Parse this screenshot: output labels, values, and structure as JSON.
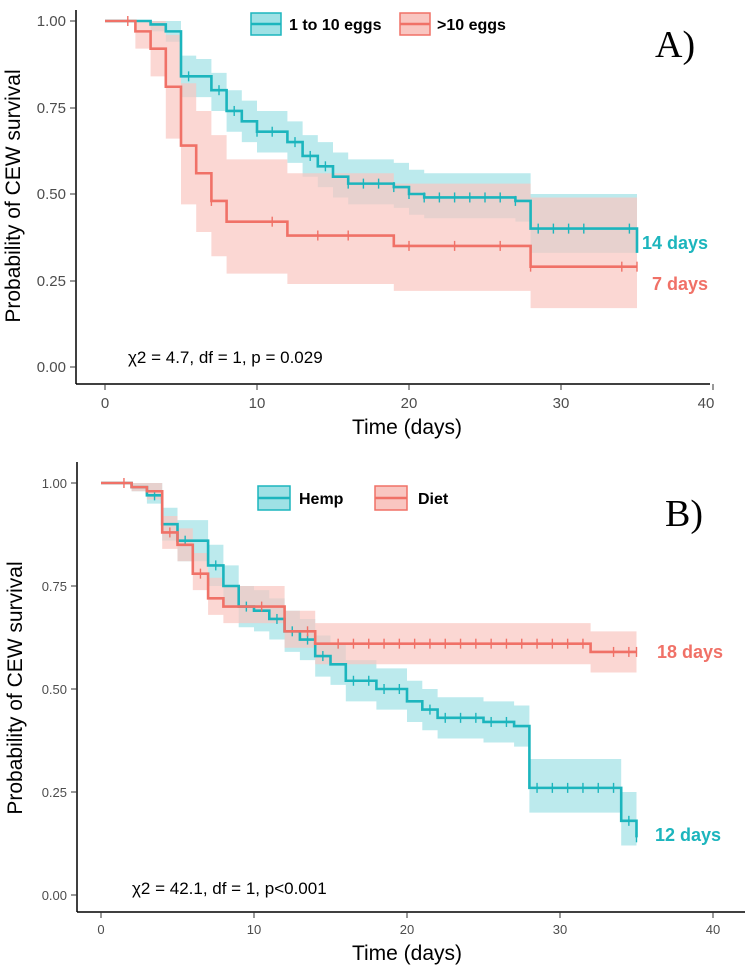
{
  "chart_data": [
    {
      "type": "line",
      "panel_label": "A)",
      "xlabel": "Time (days)",
      "ylabel": "Probability of CEW survival",
      "xlim": [
        0,
        40
      ],
      "ylim": [
        0,
        1
      ],
      "x_ticks": [
        "0",
        "10",
        "20",
        "30",
        "40"
      ],
      "y_ticks": [
        "0.00",
        "0.25",
        "0.50",
        "0.75",
        "1.00"
      ],
      "annotation": "χ2 = 4.7, df = 1, p = 0.029",
      "series": [
        {
          "name": "1 to 10 eggs",
          "color": "#1cb5bd",
          "fill": "#9fe1e5",
          "end_label": "14 days",
          "steps": [
            [
              0,
              1.0
            ],
            [
              3,
              0.99
            ],
            [
              4,
              0.97
            ],
            [
              5,
              0.84
            ],
            [
              6,
              0.84
            ],
            [
              7,
              0.8
            ],
            [
              8,
              0.74
            ],
            [
              9,
              0.71
            ],
            [
              10,
              0.68
            ],
            [
              11,
              0.68
            ],
            [
              12,
              0.65
            ],
            [
              13,
              0.61
            ],
            [
              14,
              0.58
            ],
            [
              15,
              0.55
            ],
            [
              16,
              0.53
            ],
            [
              18,
              0.53
            ],
            [
              19,
              0.52
            ],
            [
              20,
              0.5
            ],
            [
              21,
              0.49
            ],
            [
              26,
              0.49
            ],
            [
              27,
              0.48
            ],
            [
              28,
              0.4
            ],
            [
              34,
              0.4
            ],
            [
              35,
              0.33
            ]
          ],
          "ci_upper": [
            [
              0,
              1.0
            ],
            [
              3,
              1.0
            ],
            [
              4,
              1.0
            ],
            [
              5,
              0.9
            ],
            [
              6,
              0.89
            ],
            [
              7,
              0.85
            ],
            [
              8,
              0.8
            ],
            [
              9,
              0.77
            ],
            [
              10,
              0.74
            ],
            [
              11,
              0.74
            ],
            [
              12,
              0.71
            ],
            [
              13,
              0.67
            ],
            [
              14,
              0.65
            ],
            [
              15,
              0.62
            ],
            [
              16,
              0.6
            ],
            [
              18,
              0.6
            ],
            [
              19,
              0.59
            ],
            [
              20,
              0.57
            ],
            [
              21,
              0.56
            ],
            [
              26,
              0.56
            ],
            [
              27,
              0.56
            ],
            [
              28,
              0.5
            ],
            [
              34,
              0.5
            ],
            [
              35,
              0.45
            ]
          ],
          "ci_lower": [
            [
              0,
              1.0
            ],
            [
              3,
              0.97
            ],
            [
              4,
              0.94
            ],
            [
              5,
              0.78
            ],
            [
              6,
              0.78
            ],
            [
              7,
              0.74
            ],
            [
              8,
              0.68
            ],
            [
              9,
              0.65
            ],
            [
              10,
              0.62
            ],
            [
              11,
              0.62
            ],
            [
              12,
              0.59
            ],
            [
              13,
              0.55
            ],
            [
              14,
              0.52
            ],
            [
              15,
              0.49
            ],
            [
              16,
              0.47
            ],
            [
              18,
              0.47
            ],
            [
              19,
              0.46
            ],
            [
              20,
              0.44
            ],
            [
              21,
              0.43
            ],
            [
              26,
              0.43
            ],
            [
              27,
              0.42
            ],
            [
              28,
              0.33
            ],
            [
              34,
              0.33
            ],
            [
              35,
              0.24
            ]
          ],
          "censor_x": [
            5.5,
            7.5,
            8.5,
            10,
            11,
            12.5,
            13.5,
            14.5,
            16,
            17,
            18,
            19,
            20,
            21,
            22,
            23,
            24,
            25,
            26,
            27,
            28.5,
            29.5,
            30.5,
            31.5,
            34.5
          ]
        },
        {
          "name": ">10 eggs",
          "color": "#f07167",
          "fill": "#f9c6c1",
          "end_label": "7 days",
          "steps": [
            [
              0,
              1.0
            ],
            [
              2,
              0.97
            ],
            [
              3,
              0.92
            ],
            [
              4,
              0.81
            ],
            [
              5,
              0.64
            ],
            [
              6,
              0.56
            ],
            [
              7,
              0.48
            ],
            [
              8,
              0.42
            ],
            [
              12,
              0.38
            ],
            [
              19,
              0.35
            ],
            [
              28,
              0.29
            ],
            [
              35,
              0.29
            ]
          ],
          "ci_upper": [
            [
              0,
              1.0
            ],
            [
              2,
              1.0
            ],
            [
              3,
              1.0
            ],
            [
              4,
              0.96
            ],
            [
              5,
              0.82
            ],
            [
              6,
              0.74
            ],
            [
              7,
              0.67
            ],
            [
              8,
              0.6
            ],
            [
              12,
              0.56
            ],
            [
              19,
              0.53
            ],
            [
              28,
              0.49
            ],
            [
              35,
              0.49
            ]
          ],
          "ci_lower": [
            [
              0,
              1.0
            ],
            [
              2,
              0.92
            ],
            [
              3,
              0.84
            ],
            [
              4,
              0.66
            ],
            [
              5,
              0.47
            ],
            [
              6,
              0.39
            ],
            [
              7,
              0.32
            ],
            [
              8,
              0.27
            ],
            [
              12,
              0.24
            ],
            [
              19,
              0.22
            ],
            [
              28,
              0.17
            ],
            [
              35,
              0.17
            ]
          ],
          "censor_x": [
            1.5,
            7,
            11,
            14,
            16,
            20,
            23,
            26,
            28,
            34,
            35
          ]
        }
      ]
    },
    {
      "type": "line",
      "panel_label": "B)",
      "xlabel": "Time (days)",
      "ylabel": "Probability of CEW survival",
      "xlim": [
        0,
        40
      ],
      "ylim": [
        0,
        1
      ],
      "x_ticks": [
        "0",
        "10",
        "20",
        "30",
        "40"
      ],
      "y_ticks": [
        "0.00",
        "0.25",
        "0.50",
        "0.75",
        "1.00"
      ],
      "annotation": "χ2 = 42.1, df = 1, p<0.001",
      "series": [
        {
          "name": "Hemp",
          "color": "#1cb5bd",
          "fill": "#9fe1e5",
          "end_label": "12 days",
          "steps": [
            [
              0,
              1.0
            ],
            [
              2,
              0.99
            ],
            [
              3,
              0.97
            ],
            [
              4,
              0.9
            ],
            [
              5,
              0.86
            ],
            [
              6,
              0.86
            ],
            [
              7,
              0.8
            ],
            [
              8,
              0.75
            ],
            [
              9,
              0.7
            ],
            [
              10,
              0.69
            ],
            [
              11,
              0.67
            ],
            [
              12,
              0.64
            ],
            [
              13,
              0.62
            ],
            [
              14,
              0.58
            ],
            [
              15,
              0.56
            ],
            [
              16,
              0.52
            ],
            [
              18,
              0.5
            ],
            [
              20,
              0.47
            ],
            [
              21,
              0.45
            ],
            [
              22,
              0.43
            ],
            [
              25,
              0.42
            ],
            [
              27,
              0.41
            ],
            [
              28,
              0.26
            ],
            [
              34,
              0.18
            ],
            [
              35,
              0.14
            ]
          ],
          "ci_upper": [
            [
              0,
              1.0
            ],
            [
              2,
              1.0
            ],
            [
              3,
              1.0
            ],
            [
              4,
              0.94
            ],
            [
              5,
              0.91
            ],
            [
              6,
              0.91
            ],
            [
              7,
              0.85
            ],
            [
              8,
              0.8
            ],
            [
              9,
              0.75
            ],
            [
              10,
              0.74
            ],
            [
              11,
              0.72
            ],
            [
              12,
              0.69
            ],
            [
              13,
              0.67
            ],
            [
              14,
              0.63
            ],
            [
              15,
              0.61
            ],
            [
              16,
              0.57
            ],
            [
              18,
              0.55
            ],
            [
              20,
              0.52
            ],
            [
              21,
              0.5
            ],
            [
              22,
              0.48
            ],
            [
              25,
              0.47
            ],
            [
              27,
              0.46
            ],
            [
              28,
              0.33
            ],
            [
              34,
              0.25
            ],
            [
              35,
              0.2
            ]
          ],
          "ci_lower": [
            [
              0,
              1.0
            ],
            [
              2,
              0.98
            ],
            [
              3,
              0.95
            ],
            [
              4,
              0.86
            ],
            [
              5,
              0.81
            ],
            [
              6,
              0.81
            ],
            [
              7,
              0.75
            ],
            [
              8,
              0.7
            ],
            [
              9,
              0.65
            ],
            [
              10,
              0.64
            ],
            [
              11,
              0.62
            ],
            [
              12,
              0.59
            ],
            [
              13,
              0.57
            ],
            [
              14,
              0.53
            ],
            [
              15,
              0.51
            ],
            [
              16,
              0.47
            ],
            [
              18,
              0.45
            ],
            [
              20,
              0.42
            ],
            [
              21,
              0.4
            ],
            [
              22,
              0.38
            ],
            [
              25,
              0.37
            ],
            [
              27,
              0.36
            ],
            [
              28,
              0.2
            ],
            [
              34,
              0.12
            ],
            [
              35,
              0.08
            ]
          ],
          "censor_x": [
            3.5,
            5.5,
            7.5,
            9.5,
            11.5,
            12.5,
            13.5,
            14.5,
            16.5,
            17.5,
            18.5,
            19.5,
            21.5,
            22.5,
            23.5,
            24.5,
            25.5,
            26.5,
            28.5,
            29.5,
            30.5,
            31.5,
            32.5,
            33.5,
            34.5,
            35
          ]
        },
        {
          "name": "Diet",
          "color": "#f07167",
          "fill": "#f9c6c1",
          "end_label": "18 days",
          "steps": [
            [
              0,
              1.0
            ],
            [
              2,
              0.99
            ],
            [
              3,
              0.98
            ],
            [
              4,
              0.88
            ],
            [
              5,
              0.85
            ],
            [
              6,
              0.78
            ],
            [
              7,
              0.72
            ],
            [
              8,
              0.7
            ],
            [
              12,
              0.64
            ],
            [
              14,
              0.61
            ],
            [
              32,
              0.59
            ],
            [
              35,
              0.59
            ]
          ],
          "ci_upper": [
            [
              0,
              1.0
            ],
            [
              2,
              1.0
            ],
            [
              3,
              1.0
            ],
            [
              4,
              0.92
            ],
            [
              5,
              0.89
            ],
            [
              6,
              0.83
            ],
            [
              7,
              0.77
            ],
            [
              8,
              0.75
            ],
            [
              12,
              0.69
            ],
            [
              14,
              0.66
            ],
            [
              32,
              0.64
            ],
            [
              35,
              0.64
            ]
          ],
          "ci_lower": [
            [
              0,
              1.0
            ],
            [
              2,
              0.98
            ],
            [
              3,
              0.96
            ],
            [
              4,
              0.84
            ],
            [
              5,
              0.81
            ],
            [
              6,
              0.74
            ],
            [
              7,
              0.68
            ],
            [
              8,
              0.66
            ],
            [
              12,
              0.6
            ],
            [
              14,
              0.56
            ],
            [
              32,
              0.54
            ],
            [
              35,
              0.54
            ]
          ],
          "censor_x": [
            1.5,
            4.5,
            6.5,
            10.5,
            13.5,
            15.5,
            16.5,
            17.5,
            18.5,
            19.5,
            20.5,
            21.5,
            22.5,
            23.5,
            24.5,
            25.5,
            26.5,
            27.5,
            28.5,
            29.5,
            30.5,
            31.5,
            33.5,
            34.5,
            35
          ]
        }
      ]
    }
  ]
}
